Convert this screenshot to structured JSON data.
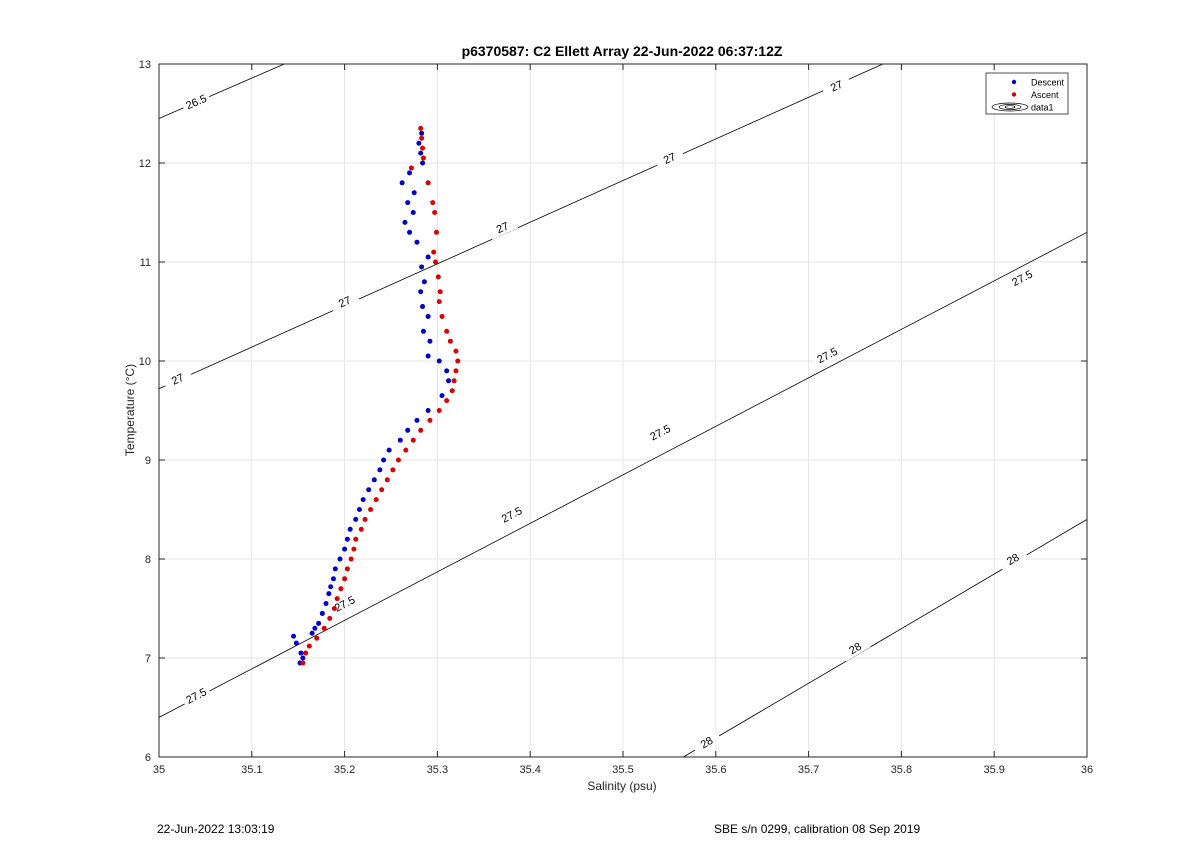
{
  "footer": {
    "timestamp": "22-Jun-2022 13:03:19",
    "calibration": "SBE s/n 0299, calibration 08 Sep 2019"
  },
  "chart_data": {
    "type": "scatter",
    "title": "p6370587: C2 Ellett Array 22-Jun-2022 06:37:12Z",
    "xlabel": "Salinity (psu)",
    "ylabel": "Temperature (°C)",
    "xlim": [
      35,
      36
    ],
    "ylim": [
      6,
      13
    ],
    "xticks": [
      35,
      35.1,
      35.2,
      35.3,
      35.4,
      35.5,
      35.6,
      35.7,
      35.8,
      35.9,
      36
    ],
    "xtick_labels": [
      "35",
      "35.1",
      "35.2",
      "35.3",
      "35.4",
      "35.5",
      "35.6",
      "35.7",
      "35.8",
      "35.9",
      "36"
    ],
    "yticks": [
      6,
      7,
      8,
      9,
      10,
      11,
      12,
      13
    ],
    "ytick_labels": [
      "6",
      "7",
      "8",
      "9",
      "10",
      "11",
      "12",
      "13"
    ],
    "grid": true,
    "legend_position": "top-right",
    "legend": [
      "Descent",
      "Ascent",
      "data1"
    ],
    "colors": {
      "descent": "#0000cc",
      "ascent": "#dd0000",
      "contour": "#000000",
      "grid": "#e5e5e5"
    },
    "series": [
      {
        "name": "Descent",
        "points": [
          [
            35.152,
            6.95
          ],
          [
            35.155,
            7.0
          ],
          [
            35.153,
            7.05
          ],
          [
            35.148,
            7.15
          ],
          [
            35.145,
            7.22
          ],
          [
            35.165,
            7.25
          ],
          [
            35.168,
            7.3
          ],
          [
            35.172,
            7.35
          ],
          [
            35.176,
            7.45
          ],
          [
            35.18,
            7.55
          ],
          [
            35.183,
            7.65
          ],
          [
            35.185,
            7.72
          ],
          [
            35.188,
            7.8
          ],
          [
            35.19,
            7.9
          ],
          [
            35.195,
            8.0
          ],
          [
            35.2,
            8.1
          ],
          [
            35.203,
            8.2
          ],
          [
            35.206,
            8.3
          ],
          [
            35.212,
            8.4
          ],
          [
            35.216,
            8.5
          ],
          [
            35.22,
            8.6
          ],
          [
            35.226,
            8.7
          ],
          [
            35.232,
            8.8
          ],
          [
            35.238,
            8.9
          ],
          [
            35.242,
            9.0
          ],
          [
            35.248,
            9.1
          ],
          [
            35.26,
            9.2
          ],
          [
            35.268,
            9.3
          ],
          [
            35.278,
            9.4
          ],
          [
            35.29,
            9.5
          ],
          [
            35.305,
            9.65
          ],
          [
            35.312,
            9.8
          ],
          [
            35.31,
            9.9
          ],
          [
            35.302,
            10.0
          ],
          [
            35.29,
            10.05
          ],
          [
            35.292,
            10.2
          ],
          [
            35.285,
            10.3
          ],
          [
            35.29,
            10.45
          ],
          [
            35.284,
            10.55
          ],
          [
            35.282,
            10.7
          ],
          [
            35.286,
            10.8
          ],
          [
            35.283,
            10.95
          ],
          [
            35.29,
            11.05
          ],
          [
            35.278,
            11.2
          ],
          [
            35.27,
            11.3
          ],
          [
            35.265,
            11.4
          ],
          [
            35.274,
            11.5
          ],
          [
            35.268,
            11.6
          ],
          [
            35.275,
            11.7
          ],
          [
            35.262,
            11.8
          ],
          [
            35.27,
            11.9
          ],
          [
            35.284,
            12.0
          ],
          [
            35.282,
            12.1
          ],
          [
            35.28,
            12.2
          ],
          [
            35.283,
            12.3
          ]
        ]
      },
      {
        "name": "Ascent",
        "points": [
          [
            35.155,
            6.95
          ],
          [
            35.158,
            7.05
          ],
          [
            35.162,
            7.12
          ],
          [
            35.17,
            7.2
          ],
          [
            35.178,
            7.3
          ],
          [
            35.184,
            7.4
          ],
          [
            35.189,
            7.5
          ],
          [
            35.192,
            7.6
          ],
          [
            35.196,
            7.7
          ],
          [
            35.2,
            7.8
          ],
          [
            35.203,
            7.9
          ],
          [
            35.207,
            8.0
          ],
          [
            35.21,
            8.1
          ],
          [
            35.212,
            8.2
          ],
          [
            35.218,
            8.3
          ],
          [
            35.222,
            8.4
          ],
          [
            35.228,
            8.5
          ],
          [
            35.234,
            8.6
          ],
          [
            35.24,
            8.7
          ],
          [
            35.246,
            8.8
          ],
          [
            35.252,
            8.9
          ],
          [
            35.258,
            9.0
          ],
          [
            35.266,
            9.1
          ],
          [
            35.274,
            9.2
          ],
          [
            35.282,
            9.3
          ],
          [
            35.292,
            9.4
          ],
          [
            35.302,
            9.5
          ],
          [
            35.31,
            9.6
          ],
          [
            35.316,
            9.7
          ],
          [
            35.318,
            9.8
          ],
          [
            35.32,
            9.9
          ],
          [
            35.322,
            10.0
          ],
          [
            35.32,
            10.1
          ],
          [
            35.314,
            10.2
          ],
          [
            35.31,
            10.3
          ],
          [
            35.305,
            10.45
          ],
          [
            35.302,
            10.6
          ],
          [
            35.303,
            10.7
          ],
          [
            35.301,
            10.85
          ],
          [
            35.298,
            11.0
          ],
          [
            35.296,
            11.1
          ],
          [
            35.299,
            11.3
          ],
          [
            35.297,
            11.5
          ],
          [
            35.295,
            11.6
          ],
          [
            35.29,
            11.8
          ],
          [
            35.272,
            11.95
          ],
          [
            35.285,
            12.05
          ],
          [
            35.284,
            12.15
          ],
          [
            35.283,
            12.25
          ],
          [
            35.282,
            12.35
          ]
        ]
      }
    ],
    "contours": [
      {
        "level": "26.5",
        "labels": [
          "26.5"
        ]
      },
      {
        "level": "27",
        "labels": [
          "27",
          "27",
          "27",
          "27",
          "27"
        ]
      },
      {
        "level": "27.5",
        "labels": [
          "27.5",
          "27.5",
          "27.5",
          "27.5",
          "27.5",
          "27.5"
        ]
      },
      {
        "level": "28",
        "labels": [
          "28",
          "28",
          "28"
        ]
      }
    ]
  }
}
